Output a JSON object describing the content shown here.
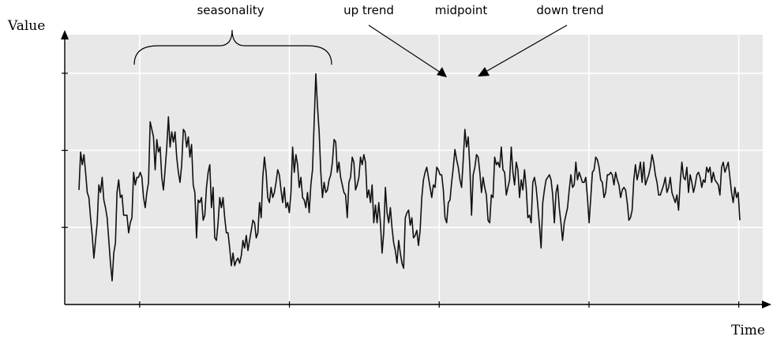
{
  "chart_data": {
    "type": "line",
    "title": "",
    "xlabel": "Time",
    "ylabel": "Value",
    "grid": true,
    "x_ticks": 4,
    "y_ticks": 3,
    "ylim": [
      0,
      100
    ],
    "series": [
      {
        "values": [
          41,
          56,
          51,
          55,
          48,
          40,
          38,
          30,
          23,
          14,
          21,
          28,
          43,
          40,
          46,
          37,
          34,
          30,
          21,
          12,
          5,
          16,
          20,
          40,
          45,
          38,
          39,
          31,
          31,
          31,
          24,
          28,
          30,
          48,
          43,
          46,
          46,
          48,
          46,
          38,
          34,
          40,
          44,
          68,
          65,
          62,
          49,
          61,
          56,
          58,
          46,
          41,
          49,
          58,
          70,
          58,
          64,
          60,
          64,
          54,
          48,
          44,
          51,
          65,
          64,
          58,
          62,
          54,
          59,
          43,
          40,
          22,
          37,
          36,
          38,
          29,
          31,
          42,
          48,
          51,
          34,
          42,
          22,
          21,
          28,
          38,
          34,
          38,
          30,
          24,
          24,
          18,
          11,
          16,
          11,
          13,
          14,
          12,
          15,
          21,
          18,
          23,
          17,
          21,
          25,
          29,
          28,
          22,
          24,
          36,
          30,
          46,
          54,
          48,
          38,
          36,
          42,
          38,
          40,
          44,
          49,
          47,
          41,
          36,
          42,
          34,
          36,
          32,
          40,
          58,
          48,
          55,
          51,
          42,
          46,
          38,
          37,
          34,
          40,
          32,
          43,
          49,
          68,
          87,
          74,
          64,
          48,
          38,
          44,
          40,
          41,
          45,
          47,
          52,
          61,
          60,
          48,
          52,
          46,
          43,
          40,
          39,
          30,
          44,
          46,
          54,
          52,
          41,
          43,
          46,
          54,
          51,
          55,
          52,
          38,
          41,
          36,
          43,
          28,
          35,
          28,
          36,
          28,
          16,
          24,
          42,
          32,
          28,
          34,
          26,
          20,
          17,
          12,
          21,
          16,
          12,
          10,
          30,
          32,
          33,
          27,
          30,
          22,
          23,
          25,
          19,
          25,
          38,
          45,
          48,
          50,
          46,
          42,
          38,
          43,
          42,
          50,
          49,
          47,
          47,
          41,
          30,
          28,
          36,
          37,
          44,
          50,
          57,
          53,
          50,
          45,
          42,
          53,
          65,
          58,
          62,
          50,
          31,
          47,
          50,
          55,
          54,
          48,
          40,
          46,
          42,
          39,
          29,
          28,
          39,
          38,
          54,
          51,
          52,
          50,
          58,
          49,
          48,
          39,
          42,
          45,
          58,
          48,
          43,
          52,
          49,
          38,
          45,
          41,
          49,
          42,
          30,
          31,
          28,
          44,
          46,
          42,
          35,
          27,
          18,
          36,
          41,
          45,
          46,
          47,
          45,
          39,
          28,
          40,
          43,
          34,
          28,
          21,
          28,
          31,
          34,
          41,
          47,
          42,
          43,
          52,
          45,
          48,
          46,
          44,
          44,
          46,
          38,
          28,
          38,
          48,
          49,
          54,
          53,
          50,
          45,
          44,
          38,
          40,
          47,
          47,
          48,
          47,
          43,
          48,
          45,
          43,
          38,
          41,
          42,
          41,
          36,
          29,
          30,
          33,
          45,
          51,
          45,
          48,
          52,
          44,
          52,
          43,
          45,
          47,
          50,
          55,
          52,
          47,
          44,
          39,
          39,
          41,
          43,
          46,
          40,
          42,
          46,
          40,
          38,
          36,
          39,
          33,
          44,
          52,
          46,
          45,
          50,
          40,
          47,
          44,
          40,
          43,
          47,
          48,
          46,
          42,
          45,
          44,
          50,
          48,
          50,
          44,
          48,
          45,
          44,
          43,
          39,
          50,
          52,
          48,
          50,
          52,
          46,
          40,
          36,
          42,
          38,
          40,
          29
        ]
      }
    ],
    "annotations": [
      {
        "text": "seasonality"
      },
      {
        "text": "up trend"
      },
      {
        "text": "midpoint"
      },
      {
        "text": "down trend"
      }
    ]
  }
}
